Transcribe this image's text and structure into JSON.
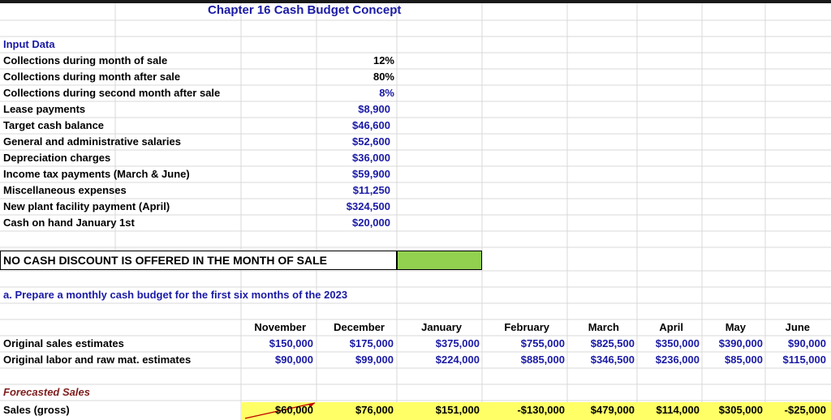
{
  "title": "Chapter 16 Cash Budget Concept",
  "input_header": "Input Data",
  "inputs": [
    {
      "label": "Collections during month of sale",
      "value": "12%",
      "blue": false
    },
    {
      "label": "Collections during month after sale",
      "value": "80%",
      "blue": false
    },
    {
      "label": "Collections during second month after sale",
      "value": "8%",
      "blue": true
    },
    {
      "label": "Lease payments",
      "value": "$8,900",
      "blue": true
    },
    {
      "label": "Target cash balance",
      "value": "$46,600",
      "blue": true
    },
    {
      "label": "General and administrative salaries",
      "value": "$52,600",
      "blue": true
    },
    {
      "label": "Depreciation charges",
      "value": "$36,000",
      "blue": true
    },
    {
      "label": "Income tax payments (March & June)",
      "value": "$59,900",
      "blue": true
    },
    {
      "label": "Miscellaneous expenses",
      "value": "$11,250",
      "blue": true
    },
    {
      "label": "New plant facility payment (April)",
      "value": "$324,500",
      "blue": true
    },
    {
      "label": "Cash on hand January 1st",
      "value": "$20,000",
      "blue": true
    }
  ],
  "banner": "NO CASH DISCOUNT IS OFFERED IN THE MONTH OF SALE",
  "question": "a.  Prepare a monthly cash budget for the first six months of the 2023",
  "months": [
    "November",
    "December",
    "January",
    "February",
    "March",
    "April",
    "May",
    "June"
  ],
  "rows": [
    {
      "label": "Original sales estimates",
      "values": [
        "$150,000",
        "$175,000",
        "$375,000",
        "$755,000",
        "$825,500",
        "$350,000",
        "$390,000",
        "$90,000"
      ]
    },
    {
      "label": "Original labor and raw mat. estimates",
      "values": [
        "$90,000",
        "$99,000",
        "$224,000",
        "$885,000",
        "$346,500",
        "$236,000",
        "$85,000",
        "$115,000"
      ]
    }
  ],
  "forecast_header": "Forecasted Sales",
  "sales_row": {
    "label": "Sales (gross)",
    "values": [
      "$60,000",
      "$76,000",
      "$151,000",
      "-$130,000",
      "$479,000",
      "$114,000",
      "$305,000",
      "-$25,000"
    ]
  },
  "colors": {
    "blue": "#1a1aa6",
    "green": "#92d050",
    "yellow": "#ffff66",
    "dark_red": "#7f1d1d"
  }
}
